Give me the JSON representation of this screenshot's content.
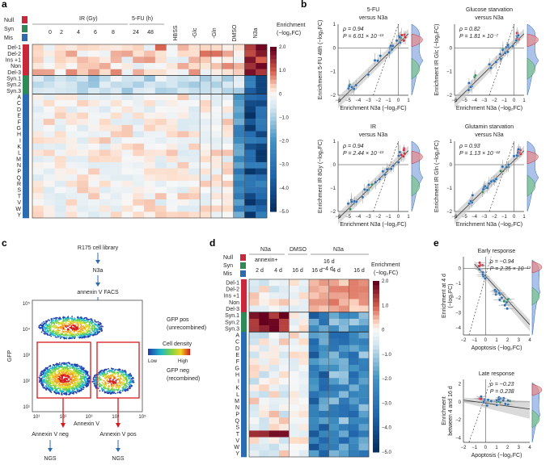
{
  "panels": {
    "a": "a",
    "b": "b",
    "c": "c",
    "d": "d",
    "e": "e"
  },
  "colors": {
    "null": "#c8283a",
    "syn": "#2e8b57",
    "mis": "#2b6cb0",
    "cmap_high": "#67001f",
    "cmap_mid": "#f7f7f7",
    "cmap_low": "#053061"
  },
  "legend": {
    "null": "Null",
    "syn": "Syn",
    "mis": "Mis"
  },
  "panel_a": {
    "groups": {
      "ir": "IR (Gy)",
      "fu": "5-FU (h)"
    },
    "conditions": [
      "0",
      "2",
      "4",
      "6",
      "8",
      "24",
      "48",
      "HBSS",
      "-Glc",
      "-Gln",
      "DMSO",
      "N3a"
    ],
    "rows": [
      "Del-1",
      "Del-2",
      "Ins +1",
      "Non",
      "Del-3",
      "Syn.1",
      "Syn.2",
      "Syn.3",
      "A",
      "C",
      "D",
      "E",
      "F",
      "G",
      "H",
      "I",
      "K",
      "L",
      "M",
      "N",
      "P",
      "Q",
      "R",
      "S",
      "T",
      "V",
      "W",
      "Y"
    ],
    "colorbar": {
      "title1": "Enrichment",
      "title2": "(−log₂FC)",
      "ticks": [
        "2.0",
        "1.0",
        "0",
        "−1.0",
        "−2.0",
        "−3.0",
        "−4.0",
        "−5.0"
      ]
    }
  },
  "panel_b": {
    "plots": [
      {
        "title1": "5-FU",
        "title2": "versus N3a",
        "ylabel": "Enrichment 5-FU 48h (−log₂FC)",
        "xlabel": "Enrichment N3a (−log₂FC)",
        "rho": "ρ = 0.94",
        "p": "P = 6.01 × 10⁻¹³"
      },
      {
        "title1": "Glucose starvation",
        "title2": "versus N3a",
        "ylabel": "Enrichment IR Glc (−log₂FC)",
        "xlabel": "Enrichment N3a (−log₂FC)",
        "rho": "ρ = 0.82",
        "p": "P = 1.81 × 10⁻⁷"
      },
      {
        "title1": "IR",
        "title2": "versus N3a",
        "ylabel": "Enrichment IR 8Gy (−log₂FC)",
        "xlabel": "Enrichment N3a (−log₂FC)",
        "rho": "ρ = 0.94",
        "p": "P = 2.44 × 10⁻¹³"
      },
      {
        "title1": "Glutamin starvation",
        "title2": "versus N3a",
        "ylabel": "Enrichment IR Gln (−log₂FC)",
        "xlabel": "Enrichment N3a (−log₂FC)",
        "rho": "ρ = 0.93",
        "p": "P = 1.13 × 10⁻¹²"
      }
    ],
    "xticks": [
      "−6",
      "−5",
      "−4",
      "−3",
      "−2",
      "−1",
      "0",
      "1"
    ],
    "yticks": [
      "−2",
      "−1",
      "0",
      "1"
    ],
    "yticks_top_right": [
      "−2",
      "−1",
      "0"
    ]
  },
  "panel_c": {
    "flow": [
      "R175 cell library",
      "N3a",
      "annexin V FACS"
    ],
    "gfp_pos1": "GFP pos",
    "gfp_pos2": "(unrecombined)",
    "gfp_neg1": "GFP neg",
    "gfp_neg2": "(recombined)",
    "density_title": "Cell density",
    "density_low": "Low",
    "density_high": "High",
    "ylabel": "GFP",
    "xlabel": "Annexin V",
    "ticks": [
      "10¹",
      "10²",
      "10³",
      "10⁴",
      "10⁵"
    ],
    "neg": "Annexin V neg",
    "pos": "Annexin V pos",
    "ngs": "NGS"
  },
  "panel_d": {
    "top_groups": {
      "n3a1": "N3a",
      "dmso": "DMSO",
      "n3a2": "N3a"
    },
    "sub_groups": {
      "annexin": "annexin+",
      "d16": "16 d",
      "d4": "−4 d"
    },
    "cols": [
      "2 d",
      "4 d",
      "16 d",
      "16 d",
      "4 d",
      "16 d"
    ],
    "rows": [
      "Del-1",
      "Del-2",
      "Ins +1",
      "Non",
      "Del-3",
      "Syn.1",
      "Syn.2",
      "Syn.3",
      "A",
      "C",
      "D",
      "E",
      "F",
      "G",
      "H",
      "I",
      "K",
      "L",
      "M",
      "N",
      "P",
      "Q",
      "S",
      "T",
      "V",
      "W",
      "Y"
    ],
    "colorbar": {
      "title1": "Enrichment",
      "title2": "(−log₂FC)",
      "ticks": [
        "2.0",
        "1.0",
        "0",
        "−1.0",
        "−2.0",
        "−3.0",
        "−4.0",
        "−5.0"
      ]
    }
  },
  "panel_e": {
    "early": {
      "title": "Early response",
      "ylabel1": "Enrichment at 4 d",
      "ylabel2": "(−log₂FC)",
      "rho": "ρ = −0.94",
      "p": "P = 2.35 × 10⁻¹³",
      "xlabel": "Apoptosis (−log₂FC)"
    },
    "late": {
      "title": "Late response",
      "ylabel1": "Enrichment",
      "ylabel2": "between 4 and 16 d",
      "rho": "ρ = −0.23",
      "p": "P = 0.238",
      "xlabel": "Apoptosis (−log₂FC)"
    },
    "xticks": [
      "−2",
      "−1",
      "0",
      "1",
      "2",
      "3",
      "4"
    ],
    "yticks": [
      "−4",
      "−3",
      "−2",
      "−1",
      "0"
    ],
    "yticks_late": [
      "−4",
      "−2",
      "0",
      "2"
    ]
  }
}
